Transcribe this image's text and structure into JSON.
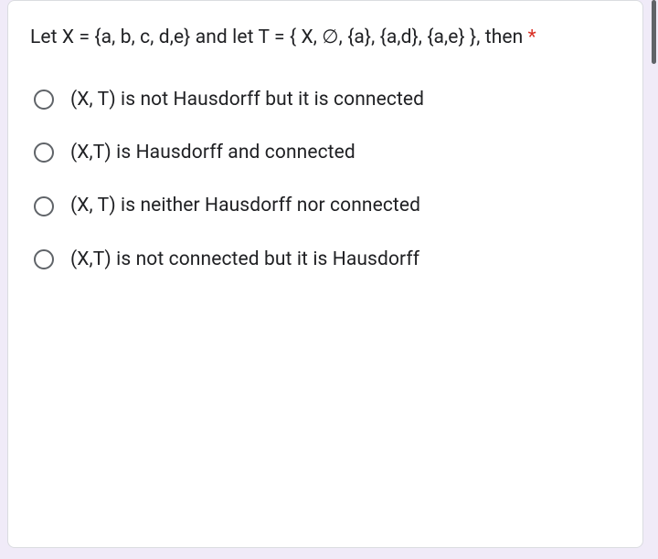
{
  "card": {
    "background_color": "#ffffff",
    "border_color": "#dadce0"
  },
  "question": {
    "text": "Let X = {a, b, c, d,e} and let T = { X, ∅, {a}, {a,d}, {a,e} }, then",
    "required_marker": "*",
    "text_color": "#202124",
    "asterisk_color": "#d93025",
    "fontsize": 21
  },
  "options": [
    {
      "label": "(X, T) is not Hausdorff but it is connected"
    },
    {
      "label": "(X,T) is Hausdorff and connected"
    },
    {
      "label": "(X, T) is neither Hausdorff nor connected"
    },
    {
      "label": "(X,T) is not connected but it is Hausdorff"
    }
  ],
  "radio": {
    "border_color": "#5f6368",
    "size": 22
  },
  "page_background": "#f0ebf8"
}
